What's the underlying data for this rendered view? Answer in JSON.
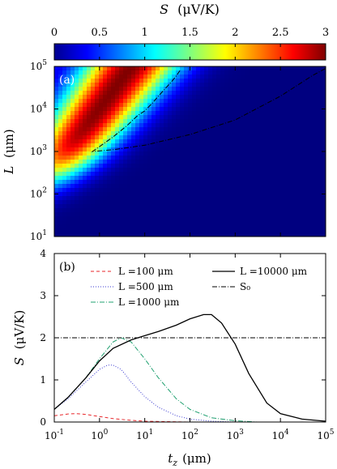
{
  "chart_data": [
    {
      "type": "heatmap",
      "panel_label": "(a)",
      "colorbar": {
        "label_symbol": "S",
        "label_unit": "(μV/K)",
        "ticks": [
          "0",
          "0.5",
          "1",
          "1.5",
          "2",
          "2.5",
          "3"
        ],
        "range": [
          0,
          3
        ],
        "colormap": "jet"
      },
      "y_axis": {
        "label_symbol": "L",
        "label_unit": "(μm)",
        "scale": "log",
        "range": [
          10,
          100000
        ],
        "tick_base": "10",
        "tick_exponents": [
          "1",
          "2",
          "3",
          "4",
          "5"
        ]
      },
      "x_axis": {
        "scale": "log",
        "range": [
          0.1,
          100000
        ]
      },
      "contour": {
        "level": 2,
        "style": "dash-dot",
        "color": "#000000"
      },
      "peak_region": {
        "max_value": 3,
        "apex_tz": 0.7,
        "apex_L": 1000
      }
    },
    {
      "type": "line",
      "panel_label": "(b)",
      "x_axis": {
        "label_symbol": "t",
        "label_subscript": "z",
        "label_unit": "(μm)",
        "scale": "log",
        "range": [
          0.1,
          100000
        ],
        "tick_base": "10",
        "tick_exponents": [
          "-1",
          "0",
          "1",
          "2",
          "3",
          "4",
          "5"
        ]
      },
      "y_axis": {
        "label_symbol": "S",
        "label_unit": "(μV/K)",
        "range": [
          0,
          4
        ],
        "ticks": [
          "0",
          "1",
          "2",
          "3",
          "4"
        ]
      },
      "series": [
        {
          "name": "L =100 μm",
          "color": "#e8262a",
          "dash": "4,3",
          "x": [
            0.1,
            0.2,
            0.3,
            0.5,
            1,
            2,
            5,
            10,
            30,
            100,
            1000,
            100000
          ],
          "y": [
            0.15,
            0.19,
            0.2,
            0.18,
            0.13,
            0.08,
            0.04,
            0.02,
            0.01,
            0.0,
            0.0,
            0.0
          ]
        },
        {
          "name": "L =500 μm",
          "color": "#3b3bd0",
          "dash": "1,2",
          "x": [
            0.1,
            0.2,
            0.5,
            1,
            1.5,
            2,
            3,
            5,
            10,
            20,
            50,
            100,
            300,
            1000,
            100000
          ],
          "y": [
            0.3,
            0.55,
            0.95,
            1.25,
            1.35,
            1.35,
            1.25,
            0.95,
            0.6,
            0.35,
            0.15,
            0.07,
            0.02,
            0.0,
            0.0
          ]
        },
        {
          "name": "L =1000 μm",
          "color": "#20a070",
          "dash": "6,2,1,2",
          "x": [
            0.1,
            0.2,
            0.5,
            1,
            2,
            3,
            5,
            10,
            20,
            50,
            100,
            300,
            1000,
            3000,
            100000
          ],
          "y": [
            0.3,
            0.58,
            1.05,
            1.5,
            1.9,
            2.0,
            1.9,
            1.5,
            1.05,
            0.55,
            0.3,
            0.1,
            0.03,
            0.0,
            0.0
          ]
        },
        {
          "name": "L =10000 μm",
          "color": "#000000",
          "dash": "",
          "x": [
            0.1,
            0.2,
            0.5,
            1,
            2,
            5,
            10,
            20,
            50,
            100,
            200,
            300,
            500,
            1000,
            2000,
            5000,
            10000,
            30000,
            100000
          ],
          "y": [
            0.3,
            0.58,
            1.05,
            1.45,
            1.75,
            1.95,
            2.05,
            2.15,
            2.3,
            2.45,
            2.55,
            2.55,
            2.35,
            1.85,
            1.15,
            0.45,
            0.2,
            0.07,
            0.02
          ]
        },
        {
          "name": "S₀",
          "color": "#000000",
          "dash": "6,2,1,2",
          "x": [
            0.1,
            100000
          ],
          "y": [
            2.0,
            2.0
          ]
        }
      ]
    }
  ]
}
